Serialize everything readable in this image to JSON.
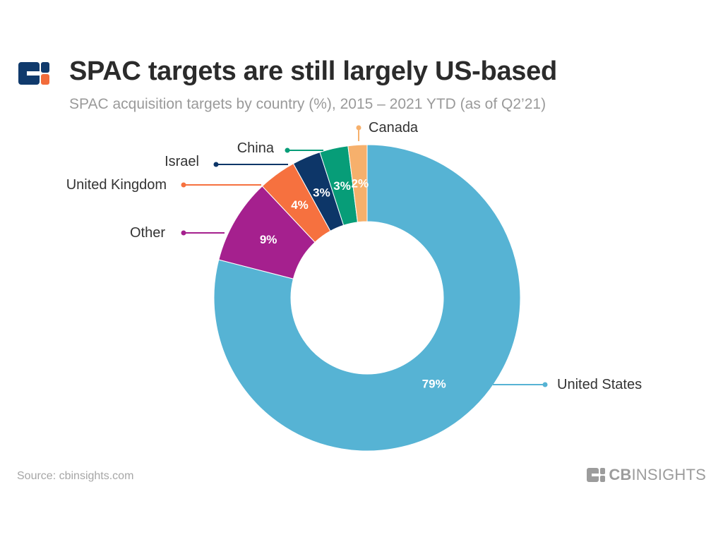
{
  "header": {
    "title": "SPAC targets are still largely US-based",
    "subtitle": "SPAC acquisition targets by country (%), 2015 – 2021 YTD (as of Q2’21)",
    "logo_colors": {
      "primary": "#103a6c",
      "accent": "#f26c3b"
    }
  },
  "chart_data": {
    "type": "pie",
    "variant": "donut",
    "title": "SPAC targets are still largely US-based",
    "subtitle": "SPAC acquisition targets by country (%), 2015 – 2021 YTD (as of Q2’21)",
    "unit": "%",
    "slices": [
      {
        "name": "United States",
        "value": 79,
        "label": "79%",
        "color": "#56b3d4"
      },
      {
        "name": "Other",
        "value": 9,
        "label": "9%",
        "color": "#a5208e"
      },
      {
        "name": "United Kingdom",
        "value": 4,
        "label": "4%",
        "color": "#f6713f"
      },
      {
        "name": "Israel",
        "value": 3,
        "label": "3%",
        "color": "#0d3668"
      },
      {
        "name": "China",
        "value": 3,
        "label": "3%",
        "color": "#079d78"
      },
      {
        "name": "Canada",
        "value": 2,
        "label": "2%",
        "color": "#f6b06c"
      }
    ],
    "legend": "callout lines"
  },
  "footer": {
    "source": "Source: cbinsights.com",
    "brand_prefix": "CB",
    "brand_suffix": "INSIGHTS"
  }
}
